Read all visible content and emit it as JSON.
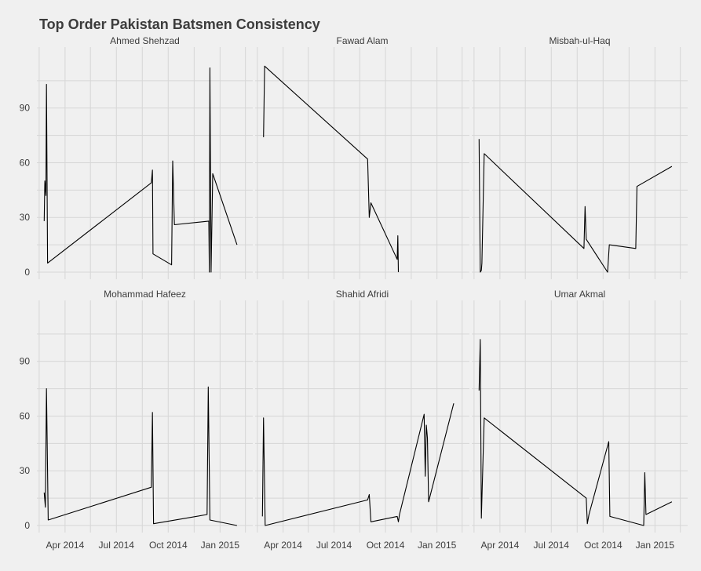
{
  "chart_data": {
    "type": "line",
    "title": "Top Order Pakistan Batsmen Consistency",
    "xlabel": "",
    "ylabel": "",
    "x_ticks": [
      "Apr 2014",
      "Jul 2014",
      "Oct 2014",
      "Jan 2015"
    ],
    "y_ticks": [
      0,
      30,
      60,
      90
    ],
    "ylim": [
      -4,
      119
    ],
    "xlim": [
      "2014-02-10",
      "2015-02-28"
    ],
    "grid": true,
    "colors": {
      "background": "#f0f0f0",
      "grid": "#d6d6d6",
      "line": "#000000",
      "text": "#3c3c3c"
    },
    "panels": [
      {
        "name": "Ahmed Shehzad",
        "points": [
          [
            "2014-02-23",
            28
          ],
          [
            "2014-02-24",
            50
          ],
          [
            "2014-02-26",
            42
          ],
          [
            "2014-02-27",
            103
          ],
          [
            "2014-03-01",
            5
          ],
          [
            "2014-09-01",
            49
          ],
          [
            "2014-09-03",
            56
          ],
          [
            "2014-09-04",
            10
          ],
          [
            "2014-10-07",
            4
          ],
          [
            "2014-10-09",
            61
          ],
          [
            "2014-10-12",
            26
          ],
          [
            "2014-12-12",
            28
          ],
          [
            "2014-12-13",
            0
          ],
          [
            "2014-12-14",
            112
          ],
          [
            "2014-12-16",
            0
          ],
          [
            "2014-12-19",
            54
          ],
          [
            "2015-01-31",
            15
          ]
        ]
      },
      {
        "name": "Fawad Alam",
        "points": [
          [
            "2014-02-25",
            74
          ],
          [
            "2014-02-27",
            113
          ],
          [
            "2014-08-30",
            62
          ],
          [
            "2014-09-02",
            30
          ],
          [
            "2014-09-05",
            38
          ],
          [
            "2014-10-22",
            7
          ],
          [
            "2014-10-23",
            20
          ],
          [
            "2014-10-24",
            0
          ]
        ]
      },
      {
        "name": "Misbah-ul-Haq",
        "points": [
          [
            "2014-02-23",
            73
          ],
          [
            "2014-02-25",
            0
          ],
          [
            "2014-02-27",
            1
          ],
          [
            "2014-02-28",
            5
          ],
          [
            "2014-03-04",
            65
          ],
          [
            "2014-08-28",
            13
          ],
          [
            "2014-08-30",
            36
          ],
          [
            "2014-09-01",
            18
          ],
          [
            "2014-10-09",
            0
          ],
          [
            "2014-10-12",
            15
          ],
          [
            "2014-11-28",
            13
          ],
          [
            "2014-11-30",
            47
          ],
          [
            "2015-01-31",
            58
          ]
        ]
      },
      {
        "name": "Mohammad Hafeez",
        "points": [
          [
            "2014-02-23",
            18
          ],
          [
            "2014-02-25",
            10
          ],
          [
            "2014-02-27",
            75
          ],
          [
            "2014-03-02",
            3
          ],
          [
            "2014-09-01",
            21
          ],
          [
            "2014-09-03",
            62
          ],
          [
            "2014-09-05",
            1
          ],
          [
            "2014-12-09",
            6
          ],
          [
            "2014-12-11",
            76
          ],
          [
            "2014-12-14",
            3
          ],
          [
            "2015-01-31",
            0
          ]
        ]
      },
      {
        "name": "Shahid Afridi",
        "points": [
          [
            "2014-02-23",
            5
          ],
          [
            "2014-02-25",
            59
          ],
          [
            "2014-02-28",
            0
          ],
          [
            "2014-08-30",
            14
          ],
          [
            "2014-09-02",
            17
          ],
          [
            "2014-09-05",
            2
          ],
          [
            "2014-10-22",
            5
          ],
          [
            "2014-10-24",
            2
          ],
          [
            "2014-10-26",
            6
          ],
          [
            "2014-12-09",
            61
          ],
          [
            "2014-12-11",
            27
          ],
          [
            "2014-12-13",
            55
          ],
          [
            "2014-12-15",
            48
          ],
          [
            "2014-12-17",
            13
          ],
          [
            "2015-01-31",
            67
          ]
        ]
      },
      {
        "name": "Umar Akmal",
        "points": [
          [
            "2014-02-23",
            74
          ],
          [
            "2014-02-25",
            102
          ],
          [
            "2014-02-27",
            4
          ],
          [
            "2014-03-04",
            59
          ],
          [
            "2014-09-01",
            15
          ],
          [
            "2014-09-03",
            1
          ],
          [
            "2014-09-06",
            6
          ],
          [
            "2014-10-11",
            46
          ],
          [
            "2014-10-13",
            5
          ],
          [
            "2014-12-12",
            0
          ],
          [
            "2014-12-14",
            29
          ],
          [
            "2014-12-16",
            6
          ],
          [
            "2015-01-31",
            13
          ]
        ]
      }
    ]
  }
}
